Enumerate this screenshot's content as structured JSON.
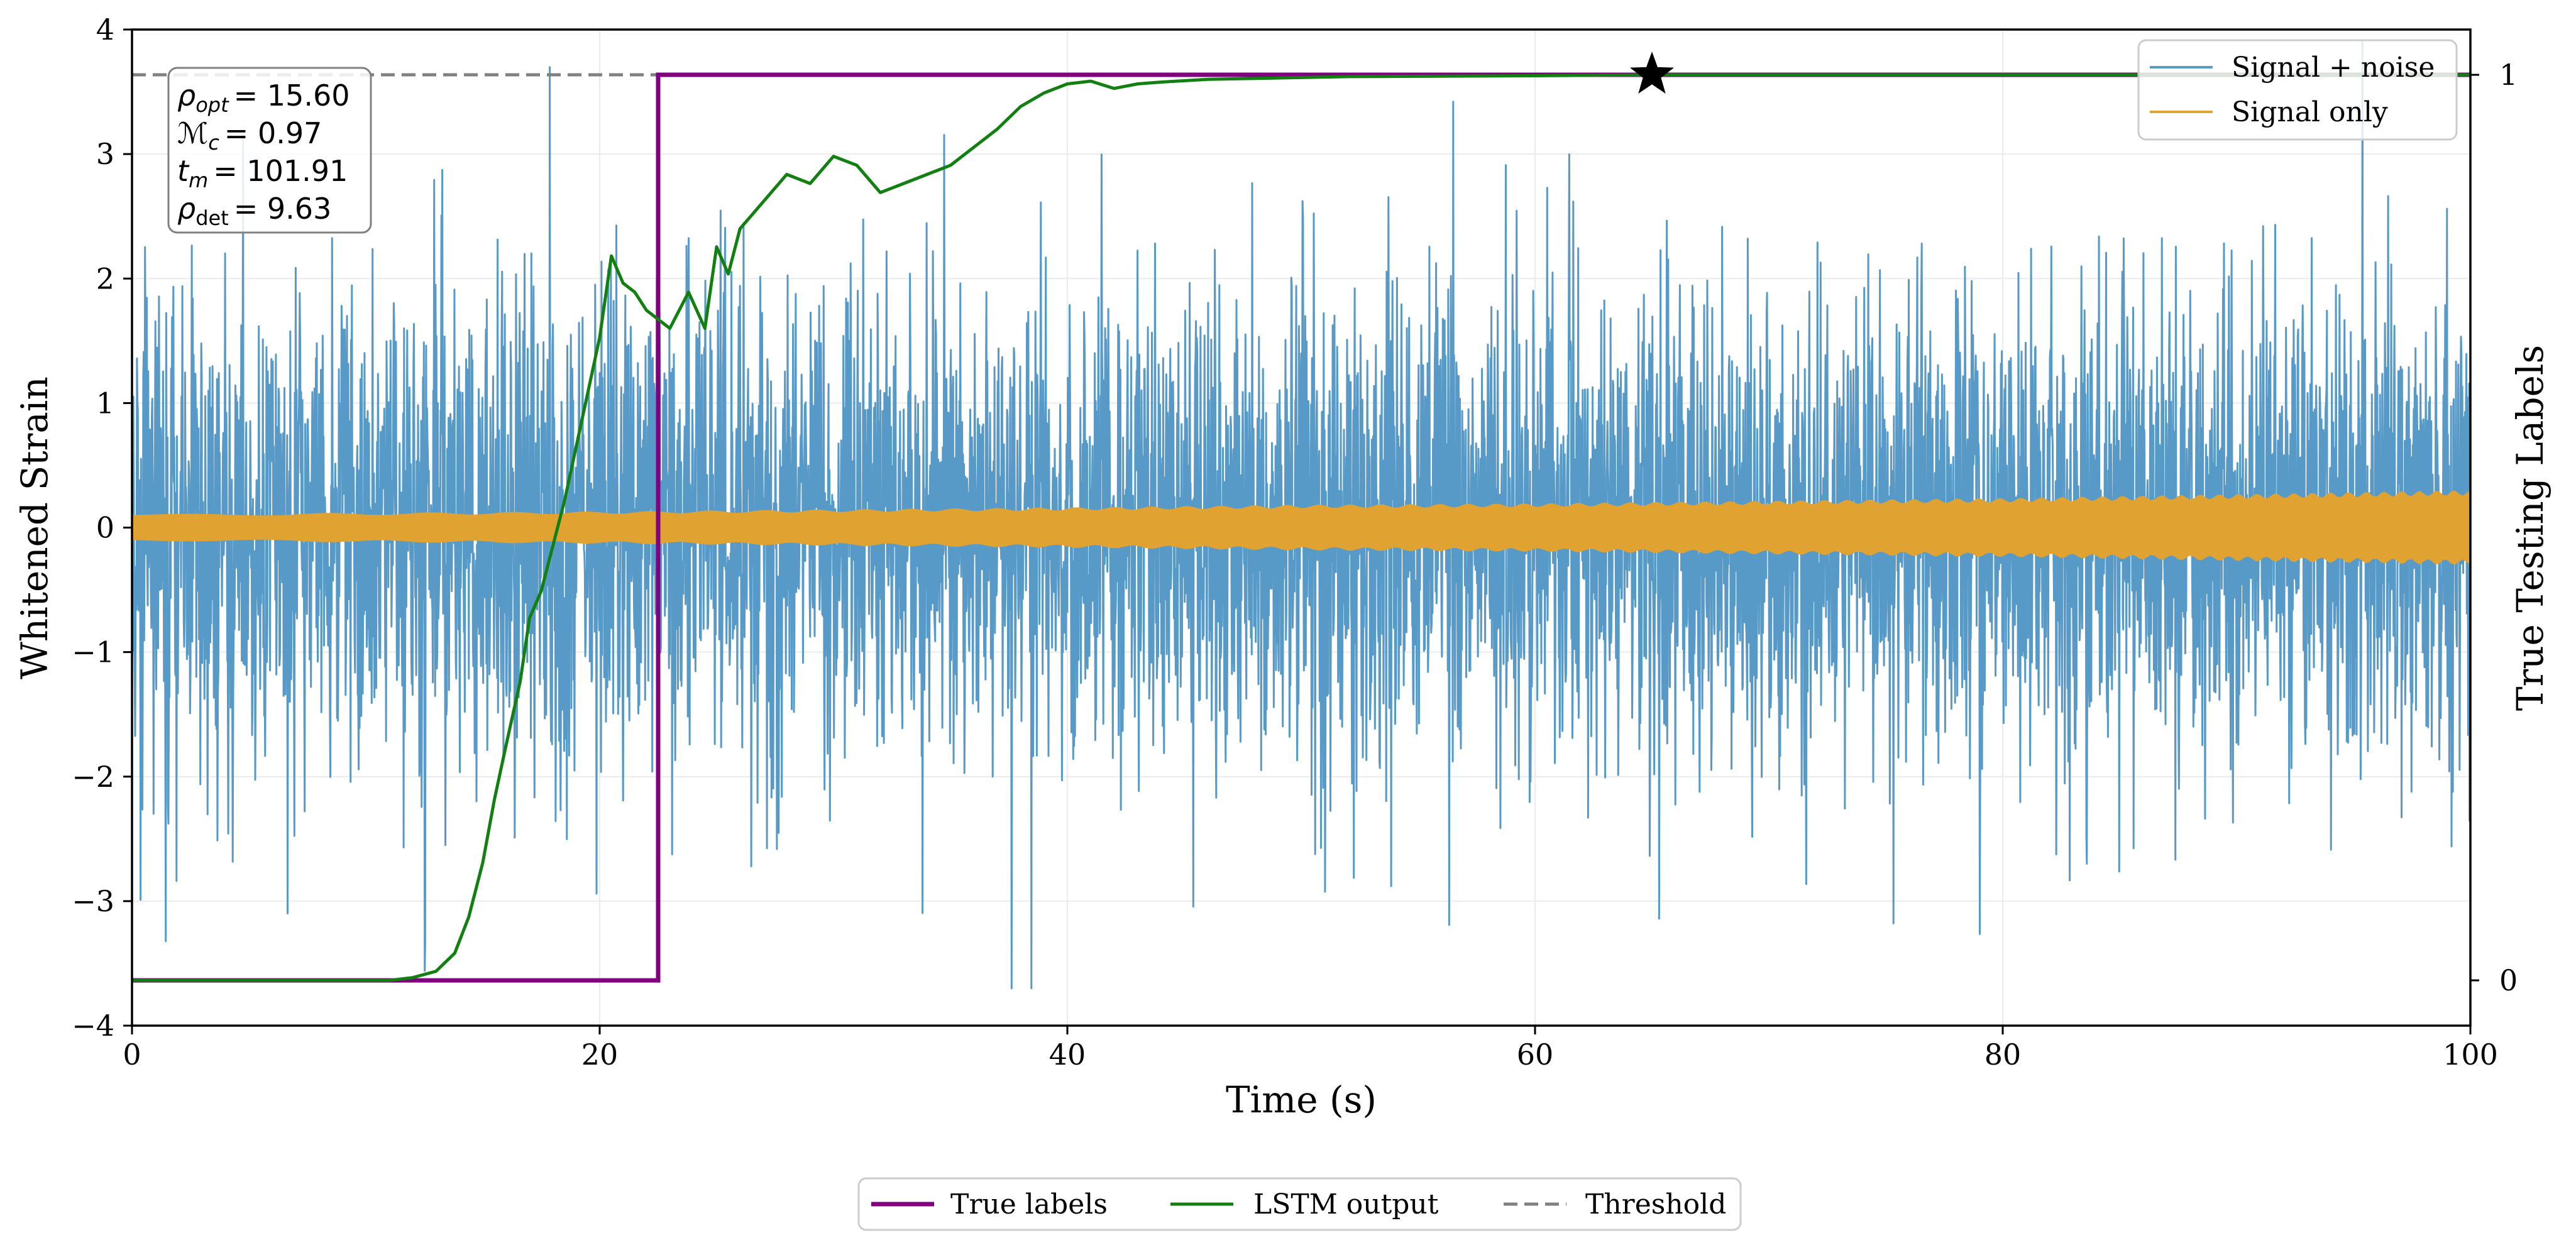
{
  "chart_data": {
    "type": "line",
    "xlabel": "Time (s)",
    "ylabel_left": "Whitened Strain",
    "ylabel_right": "True Testing Labels",
    "xlim": [
      0,
      100
    ],
    "ylim_left": [
      -4,
      4
    ],
    "ylim_right": [
      -0.05,
      1.05
    ],
    "x_ticks": [
      0,
      20,
      40,
      60,
      80,
      100
    ],
    "x_tick_labels": [
      "0",
      "20",
      "40",
      "60",
      "80",
      "100"
    ],
    "y_left_ticks": [
      -4,
      -3,
      -2,
      -1,
      0,
      1,
      2,
      3,
      4
    ],
    "y_left_tick_labels": [
      "−4",
      "−3",
      "−2",
      "−1",
      "0",
      "1",
      "2",
      "3",
      "4"
    ],
    "y_right_ticks": [
      0,
      1
    ],
    "y_right_tick_labels": [
      "0",
      "1"
    ],
    "grid": true,
    "legend_top": {
      "placement": "top-right",
      "entries": [
        {
          "label": "Signal + noise",
          "color": "#5799c7"
        },
        {
          "label": "Signal only",
          "color": "#e0a331"
        }
      ]
    },
    "legend_bottom": {
      "placement": "below-center",
      "entries": [
        {
          "label": "True labels",
          "color": "#800080",
          "style": "solid"
        },
        {
          "label": "LSTM output",
          "color": "#118011",
          "style": "solid"
        },
        {
          "label": "Threshold",
          "color": "#808080",
          "style": "dashed"
        }
      ]
    },
    "annotation_box": {
      "placement": "top-left",
      "lines": [
        {
          "symbol": "ρ",
          "sub": "opt",
          "italic_sub": true,
          "value": "= 15.60"
        },
        {
          "symbol": "ℳ",
          "sub": "c",
          "italic_sub": true,
          "value": "= 0.97"
        },
        {
          "symbol": "t",
          "sub": "m",
          "italic_sub": true,
          "value": "= 101.91"
        },
        {
          "symbol": "ρ",
          "sub": "det",
          "italic_sub": false,
          "value": "= 9.63"
        }
      ]
    },
    "threshold": 0.95,
    "detection_marker": {
      "x": 65.0,
      "y": 0.95,
      "symbol": "star"
    },
    "series": [
      {
        "name": "True labels",
        "axis": "right",
        "x": [
          0,
          22.5,
          22.5,
          100
        ],
        "y": [
          0,
          0,
          1,
          1
        ]
      },
      {
        "name": "LSTM output",
        "axis": "right",
        "x": [
          0,
          11,
          12,
          13,
          13.8,
          14.4,
          15,
          15.5,
          16,
          16.6,
          17,
          17.5,
          18,
          18.5,
          19,
          19.5,
          20,
          20.5,
          21,
          21.5,
          22,
          23,
          23.8,
          24.5,
          25,
          25.5,
          26,
          27,
          28,
          29,
          30,
          31,
          32,
          33,
          34,
          35,
          36,
          37,
          38,
          39,
          40,
          41,
          42,
          43,
          44,
          46,
          50,
          52,
          60,
          65,
          100
        ],
        "y": [
          0,
          0,
          0.003,
          0.01,
          0.03,
          0.07,
          0.13,
          0.2,
          0.26,
          0.33,
          0.4,
          0.43,
          0.48,
          0.53,
          0.59,
          0.65,
          0.71,
          0.8,
          0.77,
          0.76,
          0.74,
          0.72,
          0.76,
          0.72,
          0.81,
          0.78,
          0.83,
          0.86,
          0.89,
          0.88,
          0.91,
          0.9,
          0.87,
          0.88,
          0.89,
          0.9,
          0.92,
          0.94,
          0.965,
          0.98,
          0.99,
          0.993,
          0.985,
          0.99,
          0.992,
          0.995,
          0.997,
          0.998,
          0.999,
          1.0,
          1.0
        ]
      },
      {
        "name": "Signal + noise",
        "axis": "left",
        "x_range": [
          0,
          100
        ],
        "approx_range": [
          -3.7,
          3.9
        ],
        "typical_std": 1.0
      },
      {
        "name": "Signal only",
        "axis": "left",
        "x": [
          0,
          20,
          40,
          50,
          60,
          70,
          80,
          90,
          100
        ],
        "envelope": [
          0.1,
          0.12,
          0.15,
          0.17,
          0.18,
          0.2,
          0.22,
          0.25,
          0.28
        ]
      }
    ]
  }
}
